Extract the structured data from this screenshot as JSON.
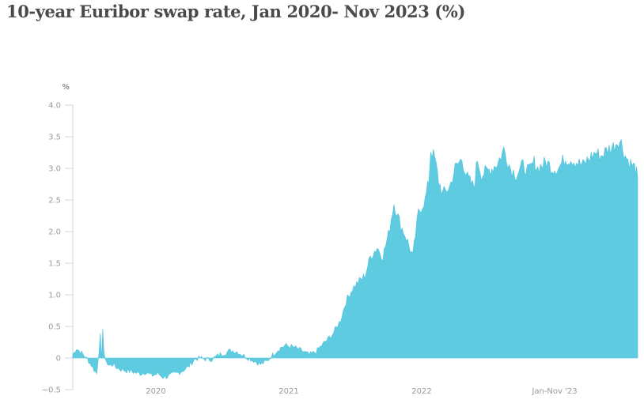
{
  "chart_data": {
    "type": "area",
    "title": "10-year Euribor swap rate, Jan 2020- Nov 2023 (%)",
    "ylabel": "%",
    "xlabel": "",
    "ylim": [
      -0.5,
      4.0
    ],
    "yticks": [
      "4.0",
      "3.5",
      "3.0",
      "2.5",
      "2.0",
      "1.5",
      "1.0",
      "0.5",
      "0",
      "−0.5"
    ],
    "xticks": [
      "2020",
      "2021",
      "2022",
      "Jan-Nov '23"
    ],
    "grid": false,
    "color": "#5ecbe1",
    "x": [
      "2020-01-01",
      "2020-01-10",
      "2020-01-20",
      "2020-02-01",
      "2020-02-10",
      "2020-02-20",
      "2020-03-01",
      "2020-03-07",
      "2020-03-10",
      "2020-03-13",
      "2020-03-16",
      "2020-03-19",
      "2020-03-22",
      "2020-03-25",
      "2020-03-28",
      "2020-04-01",
      "2020-04-10",
      "2020-04-20",
      "2020-05-01",
      "2020-05-15",
      "2020-06-01",
      "2020-06-15",
      "2020-07-01",
      "2020-07-15",
      "2020-08-01",
      "2020-08-15",
      "2020-09-01",
      "2020-09-15",
      "2020-10-01",
      "2020-10-15",
      "2020-11-01",
      "2020-11-15",
      "2020-12-01",
      "2020-12-15",
      "2021-01-01",
      "2021-01-15",
      "2021-02-01",
      "2021-02-15",
      "2021-03-01",
      "2021-03-15",
      "2021-04-01",
      "2021-04-15",
      "2021-05-01",
      "2021-05-15",
      "2021-06-01",
      "2021-06-15",
      "2021-07-01",
      "2021-07-15",
      "2021-08-01",
      "2021-08-15",
      "2021-09-01",
      "2021-09-15",
      "2021-10-01",
      "2021-10-15",
      "2021-11-01",
      "2021-11-15",
      "2021-12-01",
      "2021-12-15",
      "2022-01-01",
      "2022-01-15",
      "2022-02-01",
      "2022-02-15",
      "2022-03-01",
      "2022-03-15",
      "2022-04-01",
      "2022-04-15",
      "2022-05-01",
      "2022-05-15",
      "2022-06-01",
      "2022-06-10",
      "2022-06-15",
      "2022-06-25",
      "2022-07-05",
      "2022-07-15",
      "2022-08-01",
      "2022-08-15",
      "2022-09-01",
      "2022-09-15",
      "2022-10-01",
      "2022-10-10",
      "2022-10-20",
      "2022-11-01",
      "2022-11-15",
      "2022-12-01",
      "2022-12-15",
      "2023-01-01",
      "2023-01-15",
      "2023-02-01",
      "2023-02-15",
      "2023-03-01",
      "2023-03-10",
      "2023-03-20",
      "2023-04-01",
      "2023-04-15",
      "2023-05-01",
      "2023-05-15",
      "2023-06-01",
      "2023-06-15",
      "2023-07-01",
      "2023-07-15",
      "2023-08-01",
      "2023-08-15",
      "2023-09-01",
      "2023-09-15",
      "2023-09-28",
      "2023-10-05",
      "2023-10-15",
      "2023-10-25",
      "2023-11-01",
      "2023-11-10",
      "2023-11-15"
    ],
    "values": [
      0.05,
      0.15,
      0.1,
      0.02,
      -0.05,
      -0.15,
      -0.25,
      0.15,
      0.35,
      -0.05,
      0.5,
      0.1,
      -0.05,
      -0.03,
      -0.1,
      -0.12,
      -0.1,
      -0.15,
      -0.18,
      -0.2,
      -0.22,
      -0.25,
      -0.22,
      -0.28,
      -0.25,
      -0.3,
      -0.28,
      -0.25,
      -0.2,
      -0.15,
      -0.02,
      0.0,
      -0.02,
      -0.02,
      0.05,
      0.08,
      0.12,
      0.1,
      0.05,
      0.0,
      -0.05,
      -0.1,
      -0.05,
      0.05,
      0.15,
      0.2,
      0.18,
      0.15,
      0.1,
      0.05,
      0.1,
      0.2,
      0.3,
      0.4,
      0.6,
      0.9,
      1.1,
      1.2,
      1.3,
      1.6,
      1.75,
      1.6,
      1.95,
      2.45,
      2.1,
      1.9,
      1.6,
      2.3,
      2.5,
      2.8,
      3.3,
      3.15,
      2.8,
      2.6,
      2.7,
      3.0,
      3.15,
      2.85,
      2.7,
      3.15,
      2.9,
      2.95,
      3.0,
      3.1,
      3.3,
      3.0,
      2.9,
      3.05,
      2.95,
      3.1,
      3.0,
      3.05,
      3.1,
      3.0,
      3.0,
      3.15,
      3.15,
      3.1,
      3.05,
      3.15,
      3.25,
      3.2,
      3.3,
      3.35,
      3.45,
      3.4,
      3.2,
      3.1,
      3.05,
      3.0,
      2.85
    ]
  }
}
